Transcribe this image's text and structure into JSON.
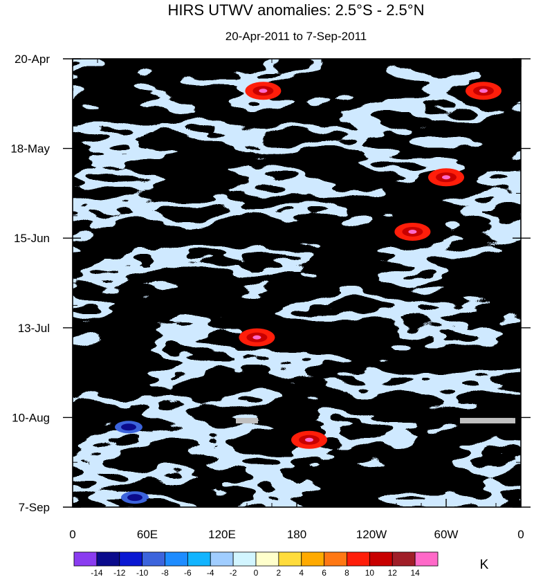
{
  "chart_data": {
    "type": "heatmap",
    "title": "HIRS UTWV anomalies: 2.5°S - 2.5°N",
    "subtitle": "20-Apr-2011 to 7-Sep-2011",
    "x_axis": {
      "label": "",
      "range_deg_east": [
        0,
        360
      ],
      "major_ticks": [
        {
          "value": 0,
          "label": "0"
        },
        {
          "value": 60,
          "label": "60E"
        },
        {
          "value": 120,
          "label": "120E"
        },
        {
          "value": 180,
          "label": "180"
        },
        {
          "value": 240,
          "label": "120W"
        },
        {
          "value": 300,
          "label": "60W"
        },
        {
          "value": 360,
          "label": "0"
        }
      ],
      "minor_tick_step": 20
    },
    "y_axis": {
      "label": "",
      "range_days": [
        0,
        140
      ],
      "direction": "downward",
      "major_ticks": [
        {
          "value": 0,
          "label": "20-Apr"
        },
        {
          "value": 28,
          "label": "18-May"
        },
        {
          "value": 56,
          "label": "15-Jun"
        },
        {
          "value": 84,
          "label": "13-Jul"
        },
        {
          "value": 112,
          "label": "10-Aug"
        },
        {
          "value": 140,
          "label": "7-Sep"
        }
      ],
      "minor_tick_step": 7
    },
    "colorbar": {
      "units": "K",
      "levels": [
        -14,
        -12,
        -10,
        -8,
        -6,
        -4,
        -2,
        0,
        2,
        4,
        6,
        8,
        10,
        12,
        14
      ],
      "level_labels": [
        "-14",
        "-12",
        "-10",
        "-8",
        "-6",
        "-4",
        "-2",
        "0",
        "2",
        "4",
        "6",
        "8",
        "10",
        "12",
        "14"
      ],
      "colors": [
        "#8a3cf0",
        "#0b0b8c",
        "#0a18d2",
        "#3c64dc",
        "#1e8cff",
        "#12b4ff",
        "#a0cdff",
        "#d2f5ff",
        "#ffffcc",
        "#ffdc3c",
        "#ffaa00",
        "#ff7814",
        "#ff1e0a",
        "#c80000",
        "#a01e28",
        "#ff69c8"
      ]
    },
    "missing_color": "#c0c0c0",
    "features": [
      {
        "name": "strong positive anomaly",
        "lon": 153,
        "day": 10
      },
      {
        "name": "strong positive anomaly",
        "lon": 330,
        "day": 10
      },
      {
        "name": "strong positive anomaly",
        "lon": 300,
        "day": 37
      },
      {
        "name": "strong positive anomaly",
        "lon": 273,
        "day": 54
      },
      {
        "name": "strong positive anomaly",
        "lon": 148,
        "day": 87
      },
      {
        "name": "strong positive anomaly",
        "lon": 190,
        "day": 119
      },
      {
        "name": "strong negative anomaly",
        "lon": 45,
        "day": 115
      },
      {
        "name": "strong negative anomaly",
        "lon": 50,
        "day": 137
      },
      {
        "name": "missing data",
        "lon": 140,
        "day": 113
      },
      {
        "name": "missing data",
        "lon": 320,
        "day": 113
      }
    ]
  }
}
